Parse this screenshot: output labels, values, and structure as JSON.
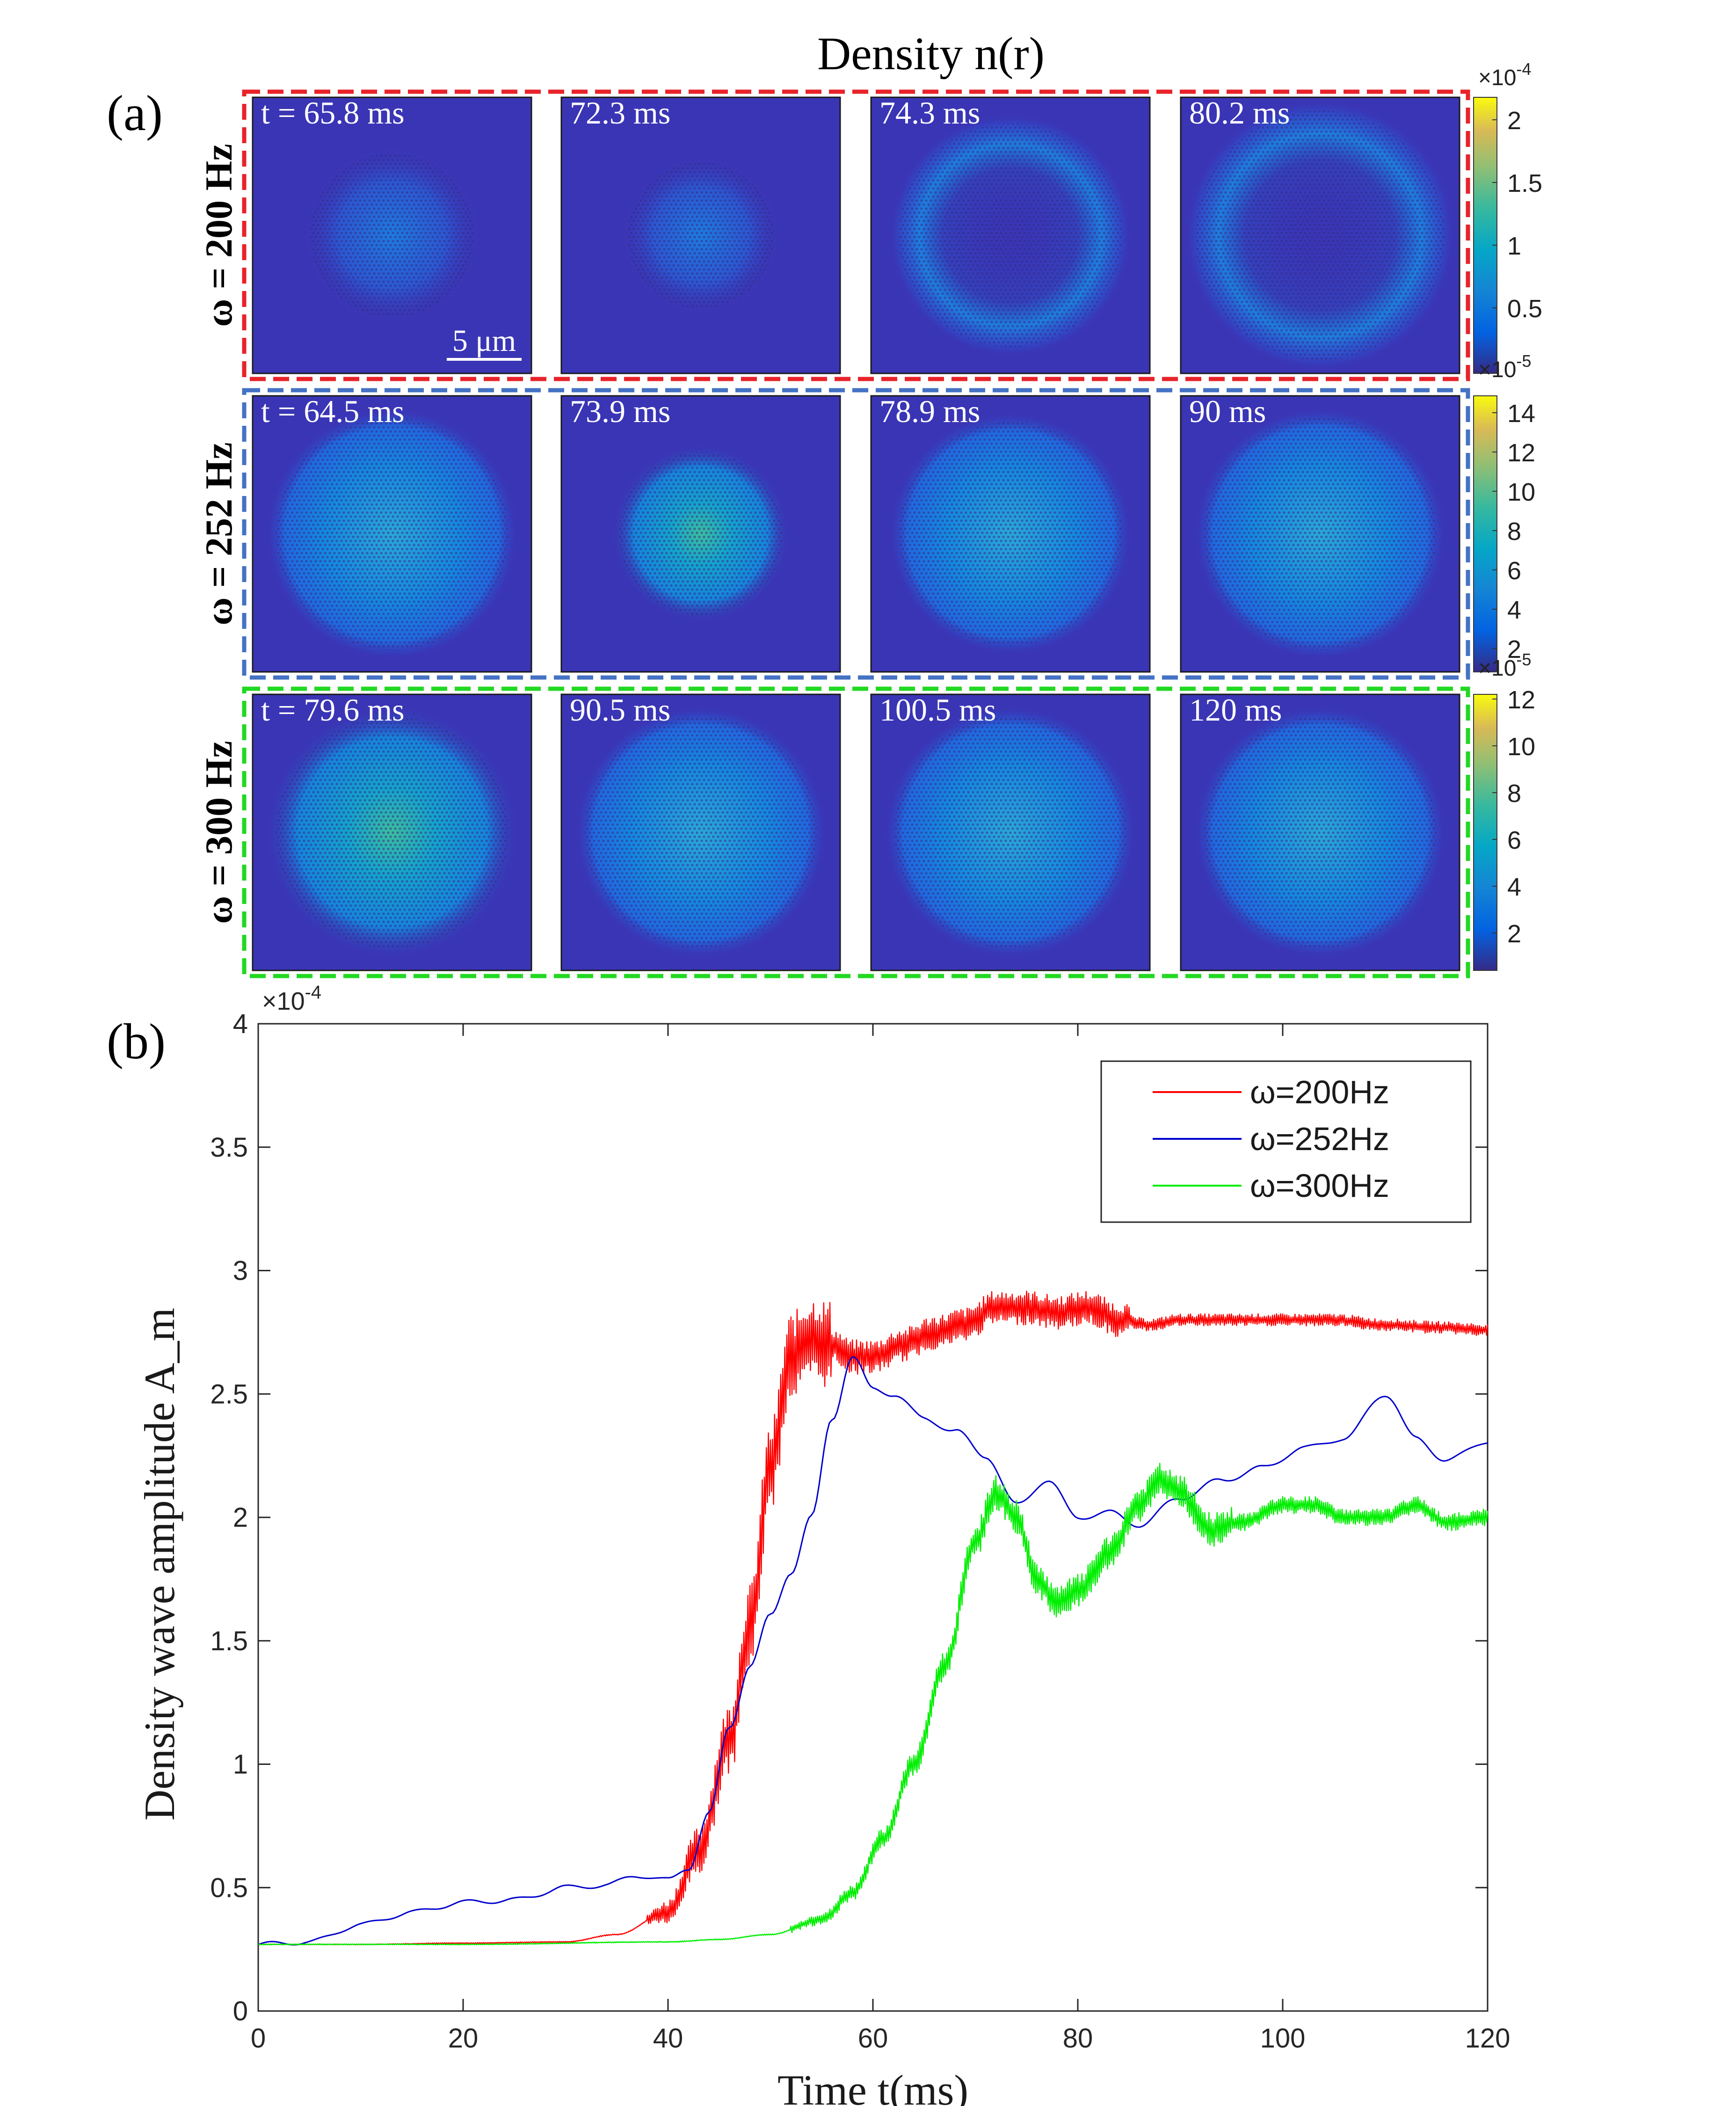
{
  "panel_a": {
    "title": "Density n(r)",
    "label": "(a)",
    "scale_bar": "5 μm",
    "rows": [
      {
        "label": "ω = 200 Hz",
        "frame_color": "#e8232a",
        "snapshots": [
          "t = 65.8 ms",
          "72.3 ms",
          "74.3 ms",
          "80.2 ms"
        ],
        "colorbar": {
          "exponent_top": "×10",
          "exponent_top_power": "-4",
          "exponent_bottom": "×10",
          "exponent_bottom_power": "-5",
          "ticks": [
            "2",
            "1.5",
            "1",
            "0.5"
          ]
        }
      },
      {
        "label": "ω = 252 Hz",
        "frame_color": "#4472c4",
        "snapshots": [
          "t = 64.5 ms",
          "73.9 ms",
          "78.9 ms",
          "90 ms"
        ],
        "colorbar": {
          "exponent_bottom": "×10",
          "exponent_bottom_power": "-5",
          "ticks": [
            "14",
            "12",
            "10",
            "8",
            "6",
            "4",
            "2"
          ]
        }
      },
      {
        "label": "ω = 300 Hz",
        "frame_color": "#22d822",
        "snapshots": [
          "t = 79.6 ms",
          "90.5 ms",
          "100.5 ms",
          "120 ms"
        ],
        "colorbar": {
          "ticks": [
            "12",
            "10",
            "8",
            "6",
            "4",
            "2"
          ]
        }
      }
    ]
  },
  "chart_data": {
    "type": "line",
    "panel_label": "(b)",
    "xlabel": "Time t(ms)",
    "ylabel": "Density wave amplitude A_m",
    "y_exponent": "×10",
    "y_exponent_power": "-4",
    "xlim": [
      0,
      120
    ],
    "ylim": [
      0,
      4
    ],
    "xticks": [
      0,
      20,
      40,
      60,
      80,
      100,
      120
    ],
    "yticks": [
      0,
      0.5,
      1,
      1.5,
      2,
      2.5,
      3,
      3.5,
      4
    ],
    "grid": false,
    "legend_position": "top-right",
    "series": [
      {
        "name": "ω=200Hz",
        "color": "#ff0000",
        "noise_note": "rapid oscillation",
        "x": [
          0,
          10,
          20,
          30,
          35,
          40,
          43,
          46,
          48,
          50,
          52,
          54,
          56,
          58,
          60,
          63,
          66,
          69,
          72,
          75,
          78,
          81,
          84,
          87,
          90,
          95,
          100,
          105,
          110,
          115,
          120
        ],
        "values": [
          0.27,
          0.27,
          0.275,
          0.28,
          0.31,
          0.4,
          0.65,
          1.1,
          1.55,
          2.2,
          2.65,
          2.72,
          2.7,
          2.65,
          2.65,
          2.7,
          2.75,
          2.78,
          2.85,
          2.85,
          2.83,
          2.85,
          2.8,
          2.78,
          2.8,
          2.8,
          2.8,
          2.8,
          2.78,
          2.77,
          2.76
        ]
      },
      {
        "name": "ω=252Hz",
        "color": "#0000cc",
        "x": [
          0,
          5,
          10,
          15,
          20,
          25,
          30,
          34,
          37,
          40,
          42,
          44,
          46,
          48,
          50,
          52,
          54,
          56,
          58,
          60,
          62,
          65,
          68,
          71,
          74,
          77,
          80,
          83,
          86,
          90,
          94,
          98,
          102,
          106,
          110,
          113,
          116,
          120
        ],
        "values": [
          0.27,
          0.28,
          0.35,
          0.4,
          0.44,
          0.45,
          0.5,
          0.51,
          0.55,
          0.53,
          0.58,
          0.8,
          1.15,
          1.4,
          1.6,
          1.78,
          2.0,
          2.4,
          2.65,
          2.52,
          2.5,
          2.4,
          2.35,
          2.25,
          2.05,
          2.15,
          2.0,
          2.02,
          1.97,
          2.08,
          2.15,
          2.2,
          2.28,
          2.32,
          2.5,
          2.32,
          2.23,
          2.31
        ]
      },
      {
        "name": "ω=300Hz",
        "color": "#00ee00",
        "noise_note": "rapid oscillation",
        "x": [
          0,
          20,
          40,
          45,
          50,
          55,
          58,
          61,
          64,
          67,
          70,
          72,
          74,
          76,
          78,
          80,
          83,
          86,
          88,
          90,
          93,
          96,
          100,
          103,
          106,
          110,
          113,
          116,
          120
        ],
        "values": [
          0.27,
          0.27,
          0.28,
          0.29,
          0.31,
          0.37,
          0.48,
          0.7,
          1.0,
          1.4,
          1.9,
          2.1,
          2.0,
          1.75,
          1.65,
          1.7,
          1.85,
          2.05,
          2.15,
          2.1,
          1.95,
          1.98,
          2.05,
          2.05,
          2.0,
          2.0,
          2.05,
          1.98,
          2.0
        ]
      }
    ]
  }
}
